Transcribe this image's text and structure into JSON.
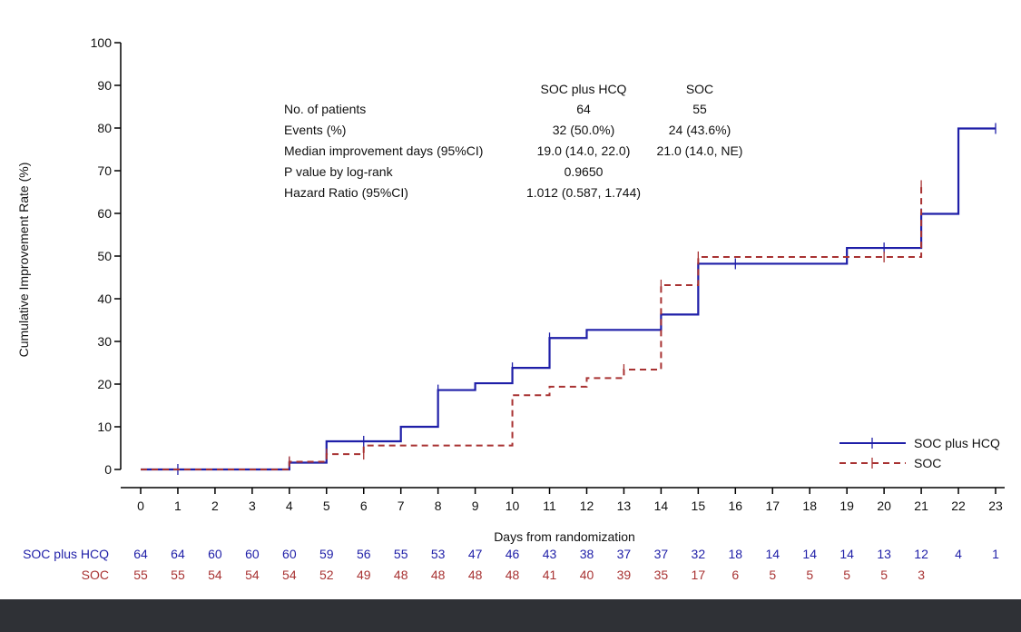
{
  "chart_data": {
    "type": "line",
    "title": "",
    "xlabel": "Days from randomization",
    "ylabel": "Cumulative Improvement Rate (%)",
    "xlim": [
      0,
      23
    ],
    "ylim": [
      0,
      100
    ],
    "x_ticks": [
      0,
      1,
      2,
      3,
      4,
      5,
      6,
      7,
      8,
      9,
      10,
      11,
      12,
      13,
      14,
      15,
      16,
      17,
      18,
      19,
      20,
      21,
      22,
      23
    ],
    "y_ticks": [
      0,
      10,
      20,
      30,
      40,
      50,
      60,
      70,
      80,
      90,
      100
    ],
    "grid": false,
    "legend_position": "bottom-right",
    "series": [
      {
        "name": "SOC plus HCQ",
        "color": "#1f1fa8",
        "line_style": "solid",
        "steps": [
          [
            0,
            0
          ],
          [
            4,
            1.6
          ],
          [
            5,
            6.6
          ],
          [
            7,
            10
          ],
          [
            8,
            18.6
          ],
          [
            9,
            20.2
          ],
          [
            10,
            23.8
          ],
          [
            11,
            30.8
          ],
          [
            12,
            32.7
          ],
          [
            14,
            36.3
          ],
          [
            15,
            48.2
          ],
          [
            19,
            51.9
          ],
          [
            21,
            59.9
          ],
          [
            22,
            79.9
          ],
          [
            23,
            79.9
          ]
        ],
        "censor_marks": [
          [
            1,
            0
          ],
          [
            4,
            1.6
          ],
          [
            6,
            6.6
          ],
          [
            8,
            18.6
          ],
          [
            10,
            23.8
          ],
          [
            11,
            30.8
          ],
          [
            14,
            36.3
          ],
          [
            15,
            48.2
          ],
          [
            16,
            48.2
          ],
          [
            20,
            51.9
          ],
          [
            21,
            59.9
          ],
          [
            23,
            79.9
          ]
        ]
      },
      {
        "name": "SOC",
        "color": "#a83232",
        "line_style": "dashed",
        "steps": [
          [
            0,
            0
          ],
          [
            4,
            1.8
          ],
          [
            5,
            3.6
          ],
          [
            6,
            5.6
          ],
          [
            10,
            17.4
          ],
          [
            11,
            19.4
          ],
          [
            12,
            21.4
          ],
          [
            13,
            23.4
          ],
          [
            14,
            43.2
          ],
          [
            15,
            49.8
          ],
          [
            21,
            66.5
          ]
        ],
        "censor_marks": [
          [
            4,
            1.8
          ],
          [
            5,
            3.6
          ],
          [
            6,
            3.6
          ],
          [
            13,
            23.4
          ],
          [
            14,
            43.2
          ],
          [
            15,
            49.8
          ],
          [
            20,
            49.8
          ],
          [
            21,
            66.5
          ]
        ]
      }
    ],
    "stats_table": {
      "col_headers": [
        "SOC plus HCQ",
        "SOC"
      ],
      "rows": [
        {
          "label": "No. of patients",
          "values": [
            "64",
            "55"
          ]
        },
        {
          "label": "Events (%)",
          "values": [
            "32 (50.0%)",
            "24 (43.6%)"
          ]
        },
        {
          "label": "Median improvement days (95%CI)",
          "values": [
            "19.0 (14.0, 22.0)",
            "21.0 (14.0, NE)"
          ]
        },
        {
          "label": "P value by log-rank",
          "values": [
            "0.9650"
          ]
        },
        {
          "label": "Hazard Ratio (95%CI)",
          "values": [
            "1.012 (0.587, 1.744)"
          ]
        }
      ]
    },
    "at_risk": [
      {
        "label": "SOC plus HCQ",
        "color": "#1f1fa8",
        "values": [
          "64",
          "64",
          "60",
          "60",
          "60",
          "59",
          "56",
          "55",
          "53",
          "47",
          "46",
          "43",
          "38",
          "37",
          "37",
          "32",
          "18",
          "14",
          "14",
          "14",
          "13",
          "12",
          "4",
          "1"
        ]
      },
      {
        "label": "SOC",
        "color": "#a83232",
        "values": [
          "55",
          "55",
          "54",
          "54",
          "54",
          "52",
          "49",
          "48",
          "48",
          "48",
          "48",
          "41",
          "40",
          "39",
          "35",
          "17",
          "6",
          "5",
          "5",
          "5",
          "5",
          "3"
        ]
      }
    ]
  }
}
